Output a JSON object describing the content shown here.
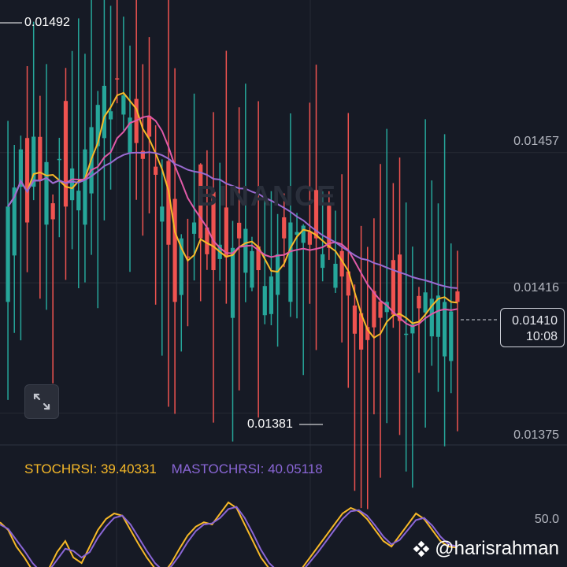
{
  "colors": {
    "background": "#161a25",
    "grid": "#262a35",
    "up": "#26a69a",
    "down": "#ef5350",
    "ma_short": "#f7b928",
    "ma_mid": "#e05aa8",
    "ma_long": "#9a6bd1",
    "stoch": "#f7b928",
    "mastoch": "#8a66d6"
  },
  "watermark": "BINANCE",
  "price_axis": {
    "labels": [
      "0.01457",
      "0.01416",
      "0.01375"
    ]
  },
  "annotations": {
    "high_label": "0.01492",
    "low_label": "0.01381"
  },
  "current_price": {
    "value": "0.01410",
    "countdown": "10:08"
  },
  "indicator": {
    "stoch_label": "STOCHRSI: 39.40331",
    "mastoch_label": "MASTOCHRSI: 40.05118",
    "axis_label": "50.0"
  },
  "footer_handle": "@harisrahman",
  "chart_data": [
    {
      "type": "candlestick",
      "title": "",
      "ylim": [
        0.01365,
        0.01505
      ],
      "yticks": [
        0.01457,
        0.01416,
        0.01375
      ],
      "grid": true,
      "close": [
        0.0144,
        0.01446,
        0.01458,
        0.01435,
        0.01462,
        0.01448,
        0.01454,
        0.01436,
        0.01455,
        0.0144,
        0.01452,
        0.01445,
        0.01458,
        0.01465,
        0.01472,
        0.01478,
        0.0147,
        0.0148,
        0.01475,
        0.01468,
        0.0146,
        0.01455,
        0.01462,
        0.0145,
        0.0144,
        0.01428,
        0.0141,
        0.0143,
        0.01424,
        0.01435,
        0.0143,
        0.01425,
        0.0142,
        0.01428,
        0.01424,
        0.01427,
        0.0143,
        0.01433,
        0.01426,
        0.0142,
        0.01415,
        0.01418,
        0.01425,
        0.0143,
        0.01435,
        0.01432,
        0.01434,
        0.01428,
        0.0143,
        0.01425,
        0.01427,
        0.01422,
        0.01418,
        0.01412,
        0.014,
        0.01395,
        0.01398,
        0.01402,
        0.01405,
        0.0141,
        0.01406,
        0.01404,
        0.014,
        0.01403,
        0.01408,
        0.01413,
        0.01411,
        0.01412,
        0.0141,
        0.01407,
        0.0141
      ],
      "high_marker": 0.01492,
      "low_marker": 0.01381
    },
    {
      "type": "line",
      "name": "STOCHRSI",
      "ylim": [
        0,
        100
      ],
      "values": [
        62,
        55,
        40,
        30,
        18,
        12,
        20,
        35,
        45,
        30,
        25,
        40,
        55,
        65,
        70,
        68,
        55,
        42,
        30,
        20,
        15,
        25,
        38,
        50,
        58,
        62,
        60,
        70,
        80,
        75,
        60,
        45,
        30,
        20,
        15,
        10,
        12,
        20,
        30,
        40,
        50,
        60,
        70,
        75,
        72,
        65,
        55,
        45,
        40,
        50,
        60,
        70,
        65,
        55,
        45,
        40,
        39
      ]
    },
    {
      "type": "line",
      "name": "MASTOCHRSI",
      "ylim": [
        0,
        100
      ],
      "values": [
        60,
        56,
        46,
        36,
        25,
        17,
        18,
        28,
        38,
        36,
        30,
        35,
        48,
        58,
        66,
        68,
        60,
        48,
        36,
        25,
        18,
        22,
        32,
        44,
        54,
        60,
        61,
        66,
        74,
        76,
        66,
        52,
        37,
        25,
        18,
        13,
        12,
        17,
        26,
        35,
        45,
        55,
        65,
        72,
        73,
        68,
        59,
        49,
        42,
        46,
        55,
        64,
        66,
        59,
        49,
        42,
        40
      ]
    }
  ]
}
